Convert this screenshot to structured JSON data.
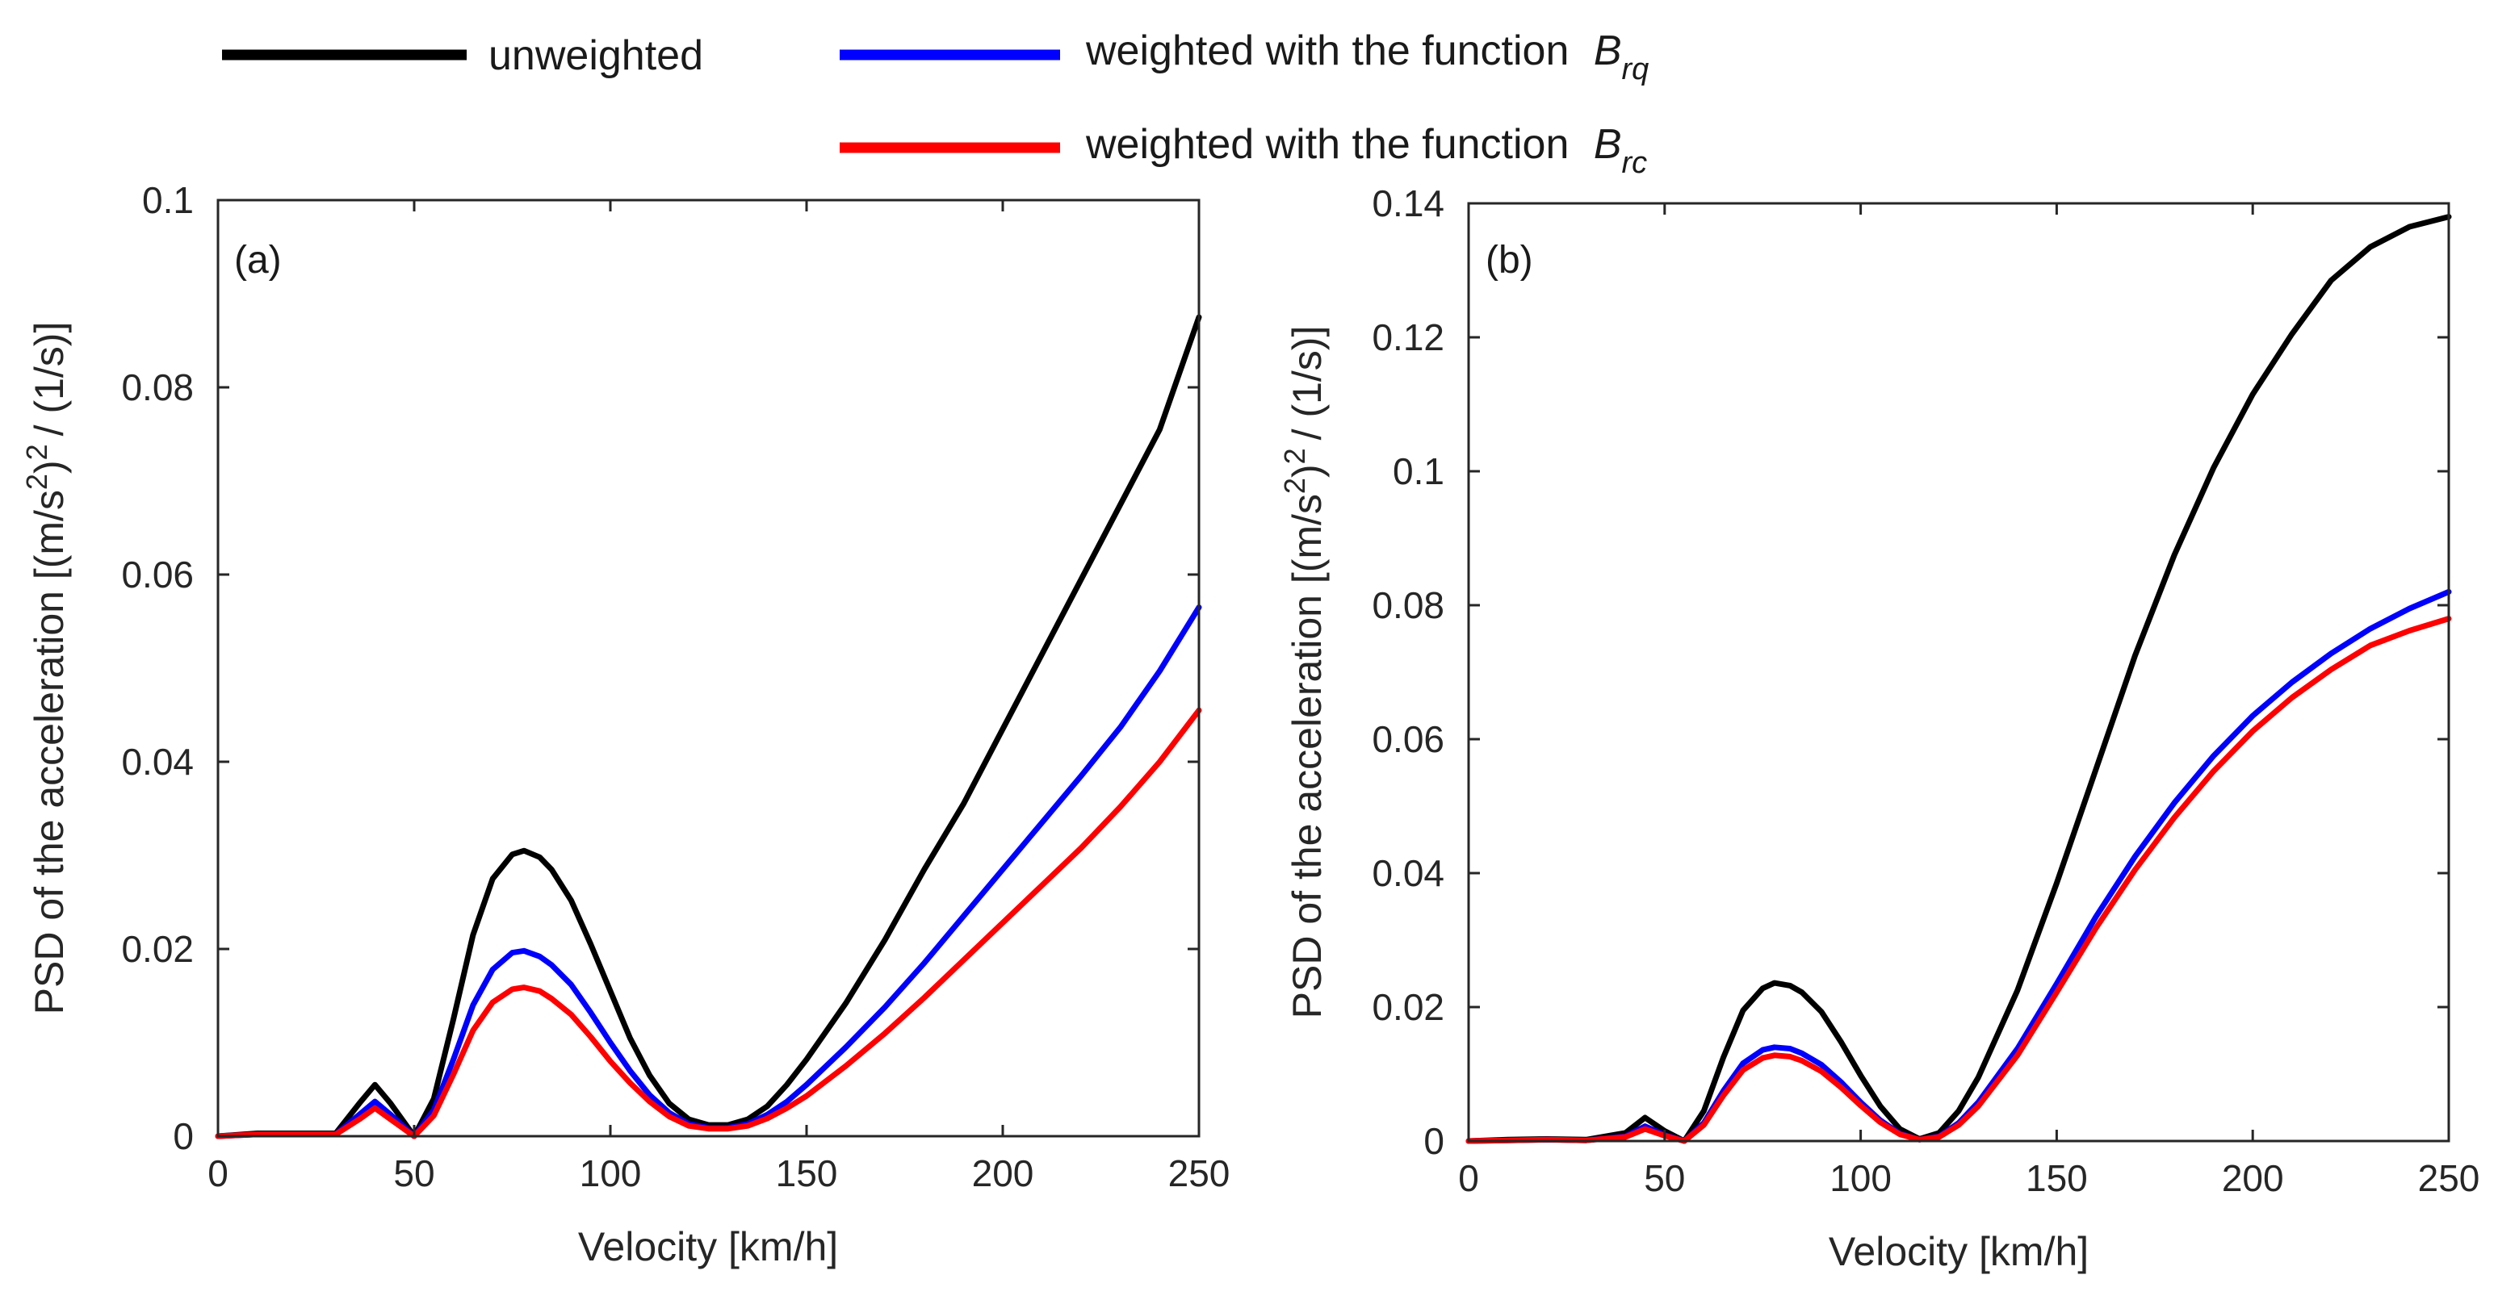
{
  "legend": {
    "items": [
      {
        "name": "unweighted",
        "label": "unweighted",
        "color": "#000000"
      },
      {
        "name": "brq",
        "label": "weighted with the function",
        "symbol": "B",
        "subscript": "rq",
        "color": "#0000ff"
      },
      {
        "name": "brc",
        "label": "weighted with the function",
        "symbol": "B",
        "subscript": "rc",
        "color": "#ff0000"
      }
    ]
  },
  "chart_data": [
    {
      "type": "line",
      "panel_label": "(a)",
      "xlabel": "Velocity [km/h]",
      "ylabel": "PSD of the acceleration [(m/s",
      "ylabel_sup": "2",
      "ylabel_mid": ")",
      "ylabel_sup2": "2",
      "ylabel_end": "/ (1/s)]",
      "xlim": [
        0,
        250
      ],
      "ylim": [
        0,
        0.1
      ],
      "xticks": [
        0,
        50,
        100,
        150,
        200,
        250
      ],
      "yticks": [
        0,
        0.02,
        0.04,
        0.06,
        0.08,
        0.1
      ],
      "xtick_labels": [
        "0",
        "50",
        "100",
        "150",
        "200",
        "250"
      ],
      "ytick_labels": [
        "0",
        "0.02",
        "0.04",
        "0.06",
        "0.08",
        "0.1"
      ],
      "x": [
        0,
        10,
        20,
        30,
        36,
        40,
        44,
        50,
        55,
        60,
        65,
        70,
        75,
        78,
        82,
        85,
        90,
        95,
        100,
        105,
        110,
        115,
        120,
        125,
        130,
        135,
        140,
        145,
        150,
        160,
        170,
        180,
        190,
        200,
        210,
        220,
        230,
        240,
        250
      ],
      "series": [
        {
          "name": "unweighted",
          "color": "#000000",
          "values": [
            0,
            0.0003,
            0.0003,
            0.0003,
            0.0035,
            0.0055,
            0.0035,
            0,
            0.004,
            0.0125,
            0.0215,
            0.0275,
            0.0301,
            0.0305,
            0.0298,
            0.0285,
            0.0252,
            0.0205,
            0.0155,
            0.0105,
            0.0065,
            0.0035,
            0.0018,
            0.0012,
            0.0012,
            0.0018,
            0.0032,
            0.0055,
            0.0082,
            0.0142,
            0.021,
            0.0285,
            0.0355,
            0.0435,
            0.0515,
            0.0595,
            0.0675,
            0.0755,
            0.0875
          ]
        },
        {
          "name": "brq",
          "color": "#0000ff",
          "values": [
            0,
            0.0002,
            0.0002,
            0.0002,
            0.0023,
            0.0037,
            0.0023,
            0,
            0.0028,
            0.0082,
            0.014,
            0.0178,
            0.0196,
            0.0198,
            0.0192,
            0.0183,
            0.0162,
            0.0132,
            0.01,
            0.007,
            0.0044,
            0.0025,
            0.0013,
            0.0009,
            0.0009,
            0.0013,
            0.0023,
            0.0037,
            0.0055,
            0.0095,
            0.0138,
            0.0185,
            0.0235,
            0.0285,
            0.0335,
            0.0385,
            0.0437,
            0.0497,
            0.0565
          ]
        },
        {
          "name": "brc",
          "color": "#ff0000",
          "values": [
            0,
            0.0002,
            0.0002,
            0.0002,
            0.0018,
            0.003,
            0.0018,
            0,
            0.0022,
            0.0066,
            0.0113,
            0.0143,
            0.0157,
            0.0159,
            0.0155,
            0.0147,
            0.013,
            0.0106,
            0.008,
            0.0057,
            0.0037,
            0.0021,
            0.0011,
            0.0008,
            0.0008,
            0.0011,
            0.0019,
            0.003,
            0.0043,
            0.0075,
            0.011,
            0.0148,
            0.0188,
            0.0228,
            0.0268,
            0.0308,
            0.0352,
            0.04,
            0.0455
          ]
        }
      ]
    },
    {
      "type": "line",
      "panel_label": "(b)",
      "xlabel": "Velocity [km/h]",
      "ylabel": "PSD of the acceleration [(m/s",
      "ylabel_sup": "2",
      "ylabel_mid": ")",
      "ylabel_sup2": "2",
      "ylabel_end": "/ (1/s)]",
      "xlim": [
        0,
        250
      ],
      "ylim": [
        0,
        0.14
      ],
      "xticks": [
        0,
        50,
        100,
        150,
        200,
        250
      ],
      "yticks": [
        0,
        0.02,
        0.04,
        0.06,
        0.08,
        0.1,
        0.12,
        0.14
      ],
      "xtick_labels": [
        "0",
        "50",
        "100",
        "150",
        "200",
        "250"
      ],
      "ytick_labels": [
        "0",
        "0.02",
        "0.04",
        "0.06",
        "0.08",
        "0.1",
        "0.12",
        "0.14"
      ],
      "x": [
        0,
        10,
        20,
        30,
        40,
        45,
        50,
        55,
        60,
        65,
        70,
        75,
        78,
        82,
        85,
        90,
        95,
        100,
        105,
        110,
        115,
        120,
        125,
        130,
        140,
        150,
        160,
        170,
        180,
        190,
        200,
        210,
        220,
        230,
        240,
        250
      ],
      "series": [
        {
          "name": "unweighted",
          "color": "#000000",
          "values": [
            0,
            0.0002,
            0.0003,
            0.0002,
            0.0012,
            0.0035,
            0.0015,
            0,
            0.0045,
            0.0125,
            0.0195,
            0.0228,
            0.0236,
            0.0232,
            0.0222,
            0.0193,
            0.0148,
            0.0098,
            0.0052,
            0.0018,
            0.0003,
            0.0012,
            0.0045,
            0.0095,
            0.0225,
            0.0385,
            0.0555,
            0.0725,
            0.0875,
            0.1005,
            0.1115,
            0.1205,
            0.1285,
            0.1335,
            0.1365,
            0.138
          ]
        },
        {
          "name": "brq",
          "color": "#0000ff",
          "values": [
            0,
            0.0001,
            0.0002,
            0.0001,
            0.0007,
            0.0022,
            0.0009,
            0,
            0.0027,
            0.0075,
            0.0116,
            0.0136,
            0.014,
            0.0138,
            0.0131,
            0.0114,
            0.0088,
            0.0058,
            0.0031,
            0.0011,
            0.0002,
            0.0007,
            0.0027,
            0.0058,
            0.0138,
            0.0235,
            0.0335,
            0.0425,
            0.0505,
            0.0575,
            0.0635,
            0.0685,
            0.0728,
            0.0765,
            0.0795,
            0.082
          ]
        },
        {
          "name": "brc",
          "color": "#ff0000",
          "values": [
            0,
            0.0001,
            0.0002,
            0.0001,
            0.0006,
            0.0018,
            0.0008,
            0,
            0.0024,
            0.0068,
            0.0106,
            0.0124,
            0.0128,
            0.0126,
            0.012,
            0.0104,
            0.008,
            0.0053,
            0.0028,
            0.001,
            0.0002,
            0.0006,
            0.0024,
            0.0052,
            0.0128,
            0.0222,
            0.0318,
            0.0405,
            0.0483,
            0.0552,
            0.0612,
            0.0662,
            0.0704,
            0.074,
            0.0762,
            0.078
          ]
        }
      ]
    }
  ]
}
